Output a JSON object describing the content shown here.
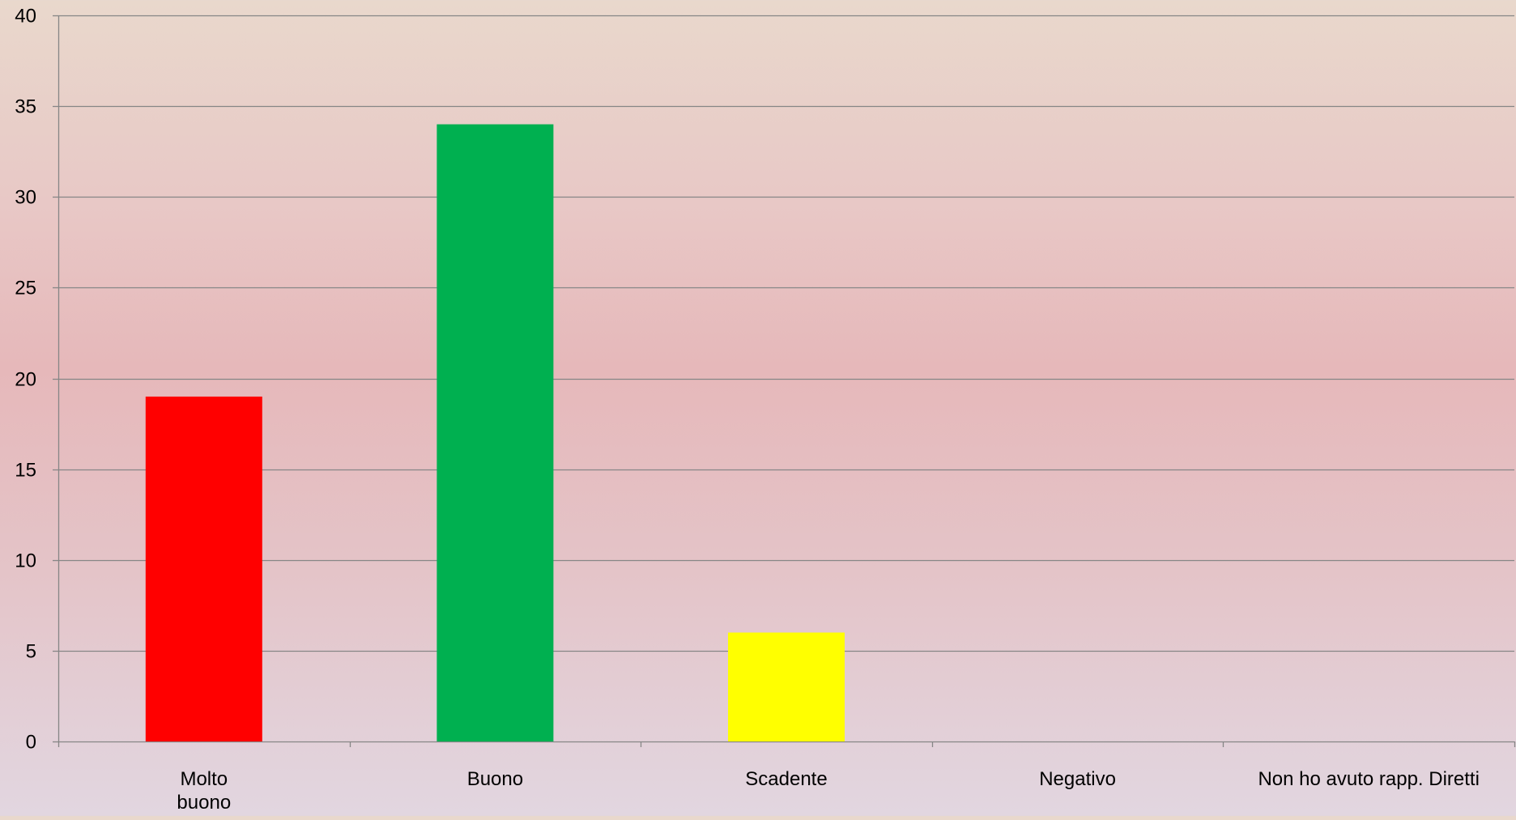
{
  "chart_data": {
    "type": "bar",
    "title": "",
    "xlabel": "",
    "ylabel": "",
    "categories": [
      [
        "Molto",
        "buono"
      ],
      [
        "Buono"
      ],
      [
        "Scadente"
      ],
      [
        "Negativo"
      ],
      [
        "Non ho avuto rapp. Diretti"
      ]
    ],
    "values": [
      19,
      34,
      6,
      0,
      0
    ],
    "colors": [
      "#ff0000",
      "#00b050",
      "#ffff00",
      "#7f7f7f",
      "#7f7f7f"
    ],
    "ylim": [
      0,
      40
    ],
    "yticks": [
      0,
      5,
      10,
      15,
      20,
      25,
      30,
      35,
      40
    ],
    "grid": true,
    "legend": "none"
  }
}
